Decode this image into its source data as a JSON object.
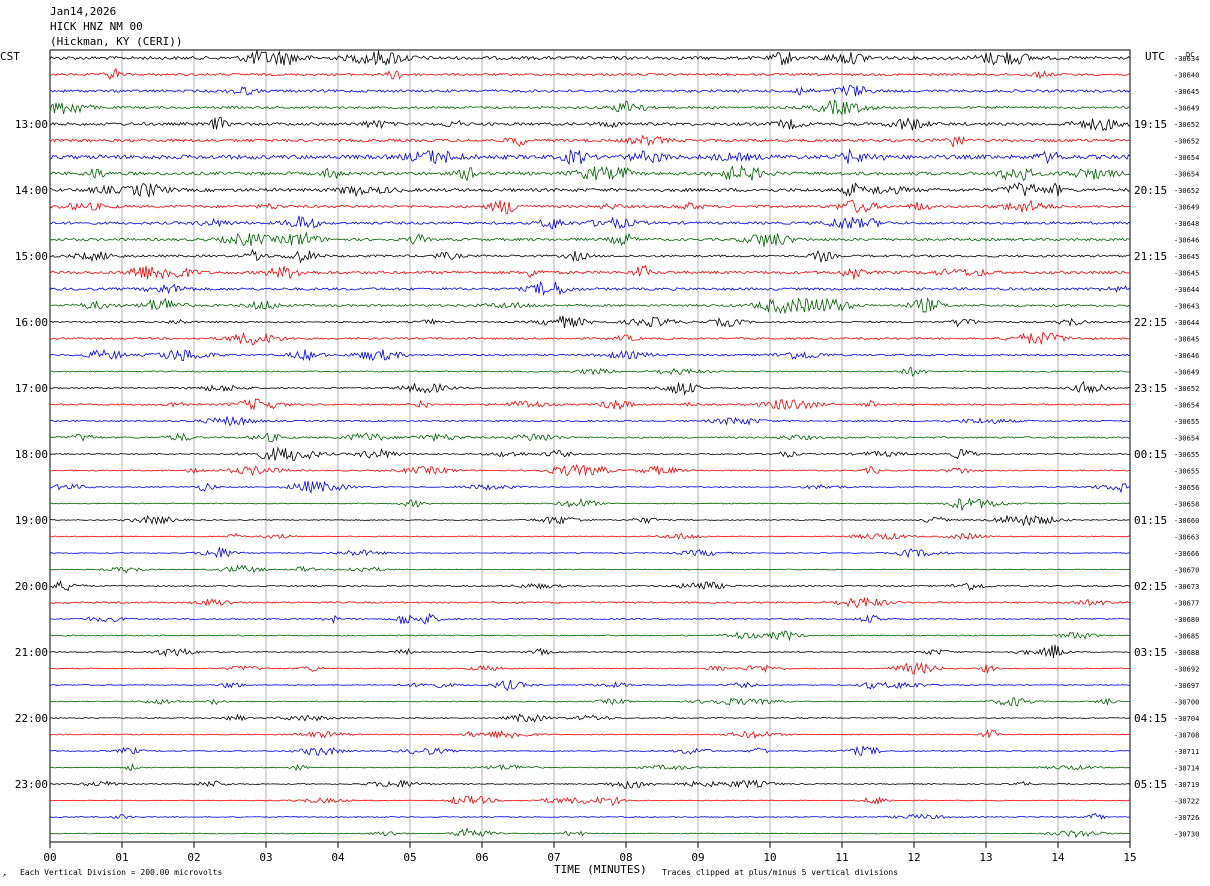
{
  "header": {
    "date": "Jan14,2026",
    "station": "HICK HNZ NM 00",
    "location": "(Hickman, KY (CERI))"
  },
  "corner_labels": {
    "left": "CST",
    "right": "UTC",
    "dc": "DC"
  },
  "colors": {
    "trace_cycle": [
      "#000000",
      "#ff0000",
      "#0000ff",
      "#006400"
    ],
    "grid": "#808080"
  },
  "chart_data": {
    "type": "line",
    "title": "",
    "xlabel": "TIME (MINUTES)",
    "x_ticks": [
      "00",
      "01",
      "02",
      "03",
      "04",
      "05",
      "06",
      "07",
      "08",
      "09",
      "10",
      "11",
      "12",
      "13",
      "14",
      "15"
    ],
    "xlim": [
      0,
      15
    ],
    "traces_per_hour": 4,
    "left_hour_labels": [
      "13:00",
      "14:00",
      "15:00",
      "16:00",
      "17:00",
      "18:00",
      "19:00",
      "20:00",
      "21:00",
      "22:00",
      "23:00"
    ],
    "right_hour_labels": [
      "19:15",
      "20:15",
      "21:15",
      "22:15",
      "23:15",
      "00:15",
      "01:15",
      "02:15",
      "03:15",
      "04:15",
      "05:15"
    ],
    "dc_offsets": [
      "-30634",
      "-30640",
      "-30645",
      "-30649",
      "-30652",
      "-30652",
      "-30654",
      "-30654",
      "-30652",
      "-30649",
      "-30648",
      "-30646",
      "-30645",
      "-30645",
      "-30644",
      "-30643",
      "-30644",
      "-30645",
      "-30646",
      "-30649",
      "-30652",
      "-30654",
      "-30655",
      "-30654",
      "-30655",
      "-30655",
      "-30656",
      "-30658",
      "-30660",
      "-30663",
      "-30666",
      "-30670",
      "-30673",
      "-30677",
      "-30680",
      "-30685",
      "-30688",
      "-30692",
      "-30697",
      "-30700",
      "-30704",
      "-30708",
      "-30711",
      "-30714",
      "-30719",
      "-30722",
      "-30726",
      "-30730"
    ],
    "trace_activity": [
      1.0,
      0.7,
      0.8,
      0.7,
      0.9,
      0.9,
      1.3,
      1.0,
      1.0,
      0.8,
      0.8,
      0.8,
      0.7,
      0.9,
      0.8,
      0.7,
      0.5,
      0.6,
      0.5,
      0.4,
      0.4,
      0.5,
      0.45,
      0.5,
      0.4,
      0.4,
      0.3,
      0.3,
      0.3,
      0.3,
      0.25,
      0.25,
      0.4,
      0.5,
      0.4,
      0.35,
      0.3,
      0.3,
      0.25,
      0.3,
      0.3,
      0.3,
      0.3,
      0.25,
      0.3,
      0.25,
      0.3,
      0.25
    ],
    "footer_left": "Each Vertical Division =  200.00 microvolts",
    "footer_right": "Traces clipped at plus/minus 5 vertical divisions"
  }
}
